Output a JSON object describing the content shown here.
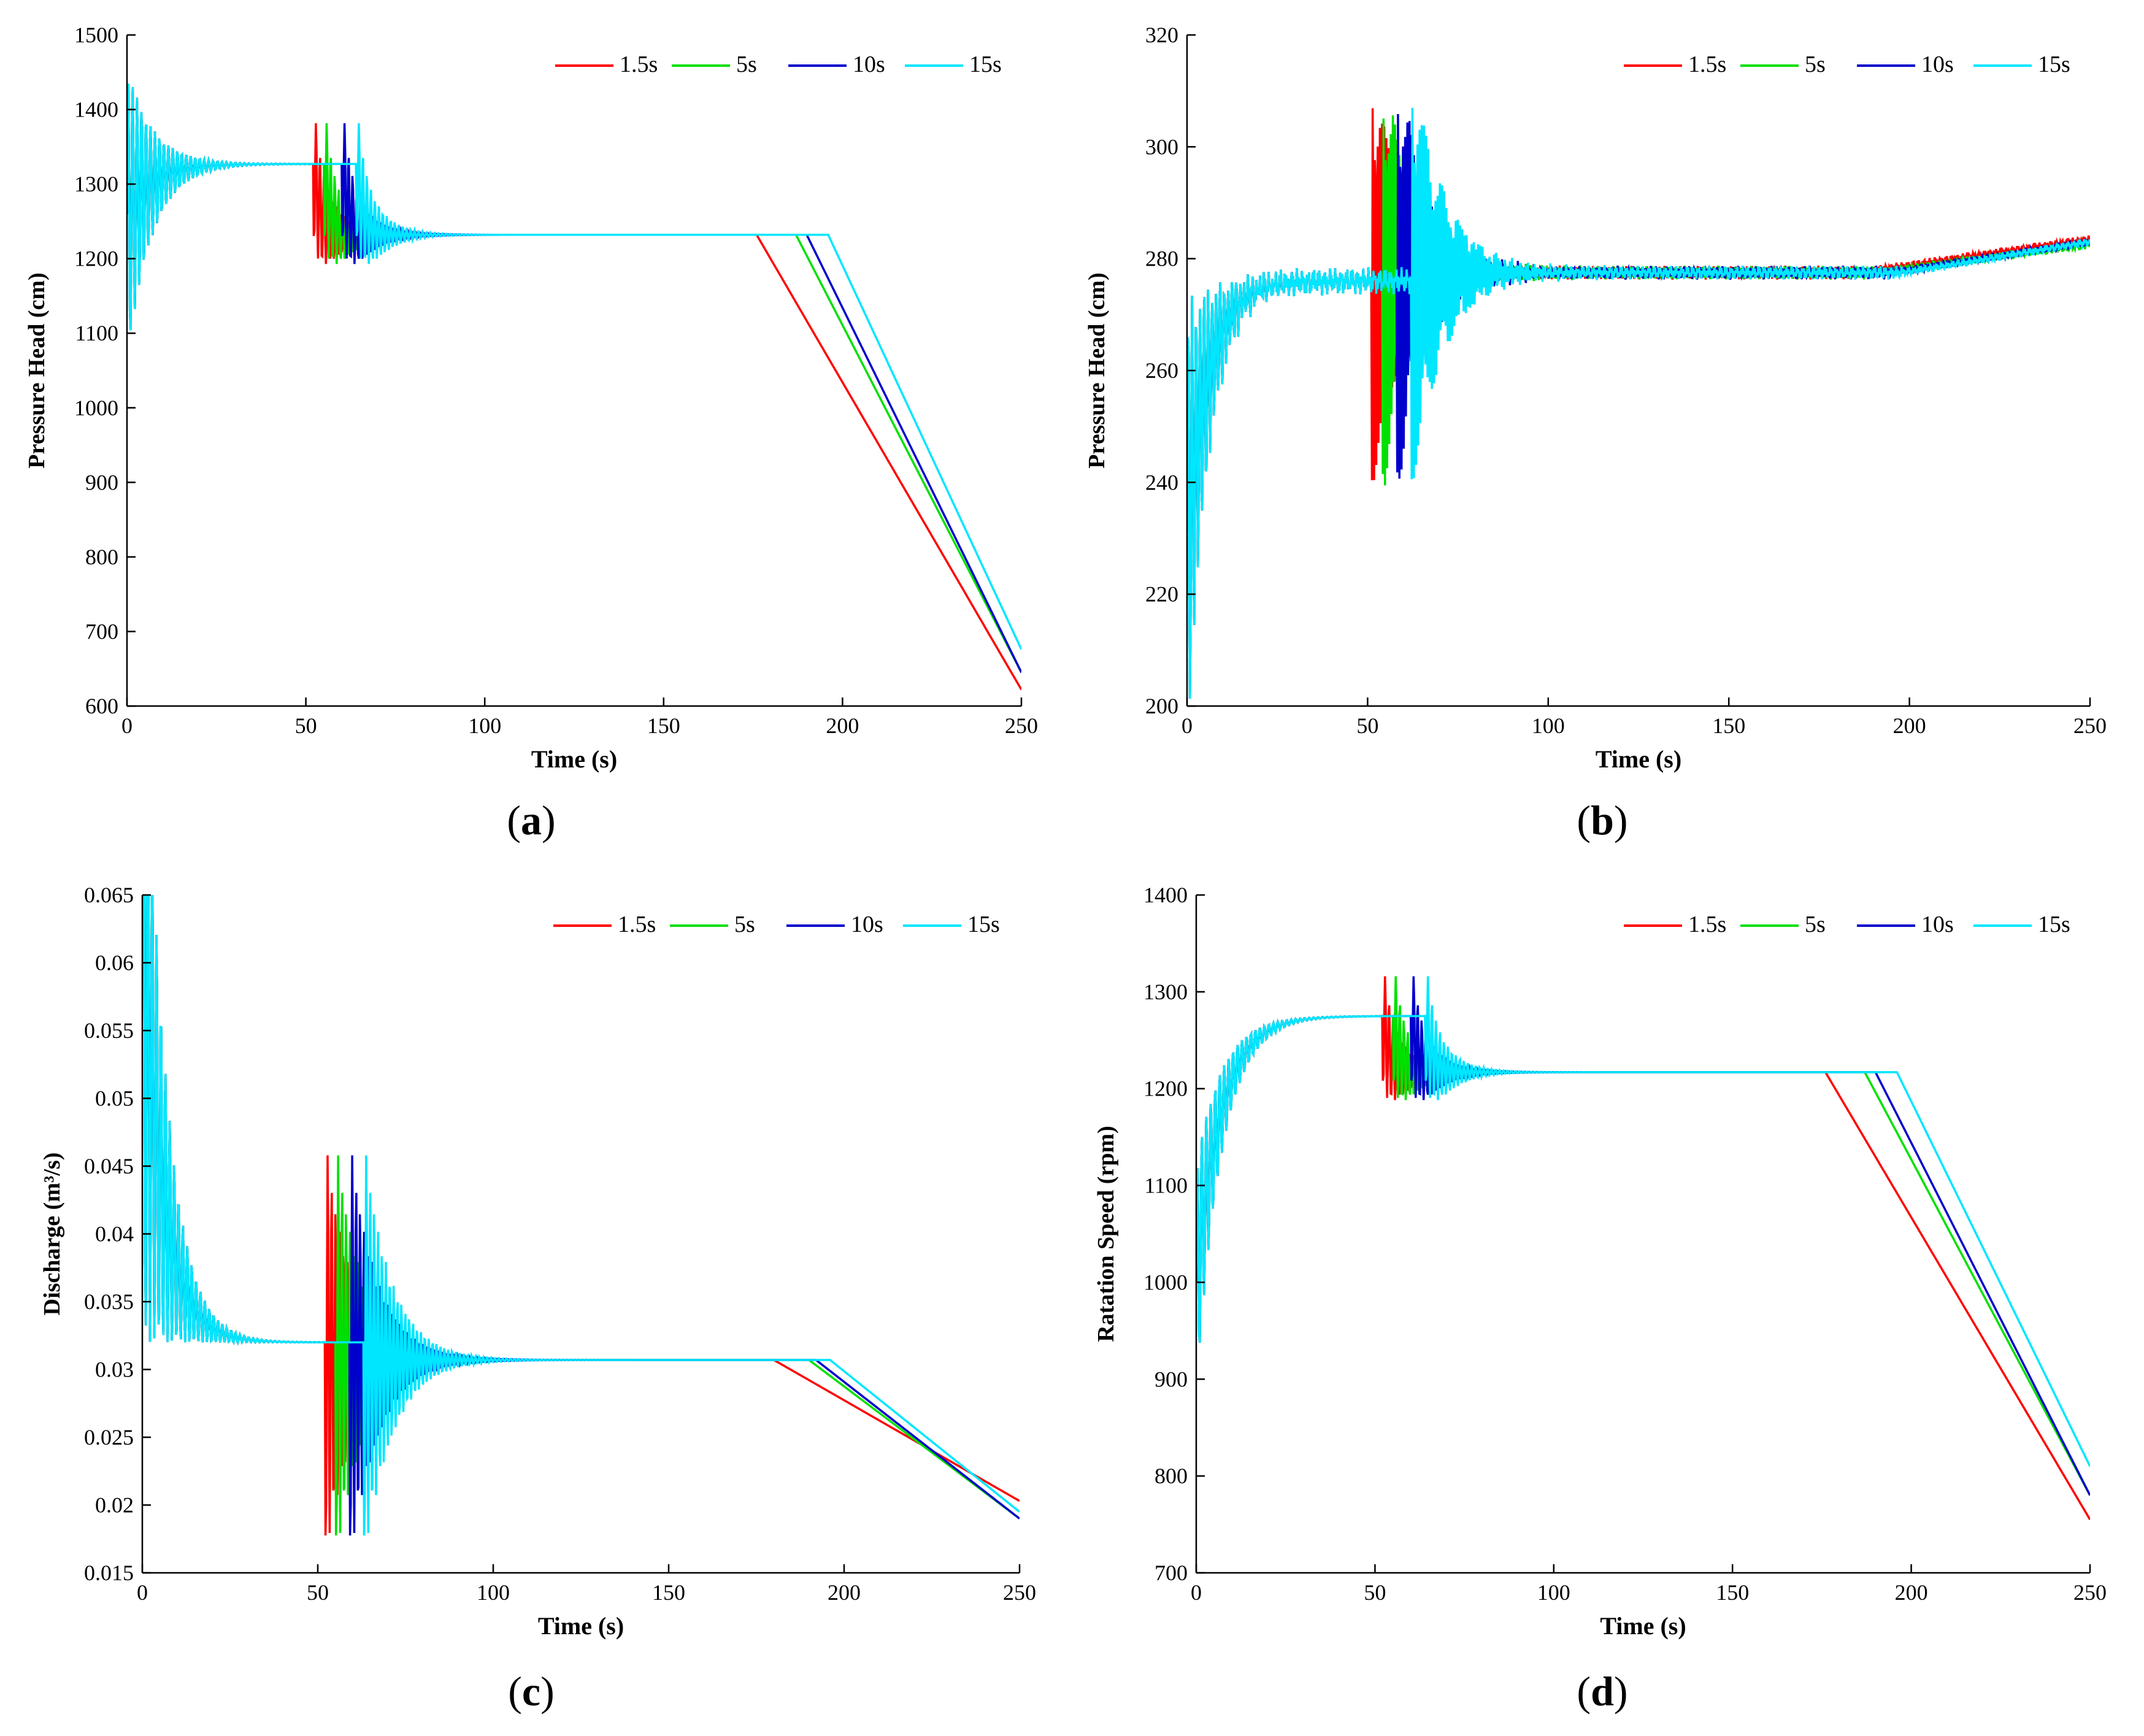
{
  "colors": {
    "series": [
      "#ff0000",
      "#00e000",
      "#0000cc",
      "#00e6ff"
    ],
    "axis": "#000000",
    "background": "#ffffff"
  },
  "chart_data": [
    {
      "panel_label": "(a)",
      "type": "line",
      "xlabel": "Time (s)",
      "ylabel": "Pressure Head (cm)",
      "xlim": [
        0,
        250
      ],
      "ylim": [
        600,
        1500
      ],
      "xticks": [
        0,
        50,
        100,
        150,
        200,
        250
      ],
      "yticks": [
        600,
        700,
        800,
        900,
        1000,
        1100,
        1200,
        1300,
        1400,
        1500
      ],
      "grid": false,
      "legend_position": "top-right",
      "profile": {
        "start": 1260,
        "init_amp": 200,
        "init_decay": 7,
        "init_freq": 0.8,
        "level1": 1327,
        "level2": 1232,
        "trans_drop": 95,
        "trans_amp": 100,
        "trans_decay": 6,
        "trans_freq": 0.9,
        "noise": 0,
        "end_values": [
          622,
          645,
          645,
          676
        ]
      },
      "series": [
        {
          "name": "1.5s",
          "t_start": 52,
          "t_ramp": 176
        },
        {
          "name": "5s",
          "t_start": 55,
          "t_ramp": 187
        },
        {
          "name": "10s",
          "t_start": 60,
          "t_ramp": 190
        },
        {
          "name": "15s",
          "t_start": 64,
          "t_ramp": 196
        }
      ]
    },
    {
      "panel_label": "(b)",
      "type": "line",
      "xlabel": "Time (s)",
      "ylabel": "Pressure Head (cm)",
      "xlim": [
        0,
        250
      ],
      "ylim": [
        200,
        320
      ],
      "xticks": [
        0,
        50,
        100,
        150,
        200,
        250
      ],
      "yticks": [
        200,
        220,
        240,
        260,
        280,
        300,
        320
      ],
      "grid": false,
      "legend_position": "top-right",
      "profile": {
        "start": 230,
        "init_amp": 40,
        "init_decay": 6,
        "init_freq": 0.9,
        "level1": 276,
        "level2": 277.5,
        "trans_drop": 0,
        "trans_amp": 40,
        "trans_decay": 9,
        "trans_freq": 1.6,
        "noise": 2.5,
        "end_values": [
          283.5,
          282.5,
          283,
          283
        ]
      },
      "series": [
        {
          "name": "1.5s",
          "t_start": 51,
          "t_ramp": 185
        },
        {
          "name": "5s",
          "t_start": 54,
          "t_ramp": 190
        },
        {
          "name": "10s",
          "t_start": 58,
          "t_ramp": 195
        },
        {
          "name": "15s",
          "t_start": 62,
          "t_ramp": 198
        }
      ]
    },
    {
      "panel_label": "(c)",
      "type": "line",
      "xlabel": "Time (s)",
      "ylabel": "Discharge (m³/s)",
      "xlim": [
        0,
        250
      ],
      "ylim": [
        0.015,
        0.065
      ],
      "xticks": [
        0,
        50,
        100,
        150,
        200,
        250
      ],
      "yticks": [
        0.015,
        0.02,
        0.025,
        0.03,
        0.035,
        0.04,
        0.045,
        0.05,
        0.055,
        0.06,
        0.065
      ],
      "grid": false,
      "legend_position": "top-right",
      "profile": {
        "start": 0.062,
        "init_amp": 0.03,
        "init_decay": 6,
        "init_freq": 0.8,
        "level1": 0.032,
        "level2": 0.0307,
        "trans_drop": 0.0013,
        "trans_amp": 0.016,
        "trans_decay": 8,
        "trans_freq": 0.9,
        "noise": 0,
        "end_values": [
          0.0203,
          0.019,
          0.019,
          0.0195
        ]
      },
      "series": [
        {
          "name": "1.5s",
          "t_start": 52,
          "t_ramp": 180
        },
        {
          "name": "5s",
          "t_start": 55,
          "t_ramp": 190
        },
        {
          "name": "10s",
          "t_start": 59,
          "t_ramp": 192
        },
        {
          "name": "15s",
          "t_start": 63,
          "t_ramp": 196
        }
      ]
    },
    {
      "panel_label": "(d)",
      "type": "line",
      "xlabel": "Time (s)",
      "ylabel": "Ratation Speed (rpm)",
      "xlim": [
        0,
        250
      ],
      "ylim": [
        700,
        1400
      ],
      "xticks": [
        0,
        50,
        100,
        150,
        200,
        250
      ],
      "yticks": [
        700,
        800,
        900,
        1000,
        1100,
        1200,
        1300,
        1400
      ],
      "grid": false,
      "legend_position": "top-right",
      "profile": {
        "start": 1000,
        "init_amp": 120,
        "init_decay": 7,
        "init_freq": 0.8,
        "level1": 1275,
        "level2": 1217,
        "trans_drop": 58,
        "trans_amp": 70,
        "trans_decay": 6,
        "trans_freq": 0.9,
        "noise": 0,
        "end_values": [
          755,
          780,
          780,
          810
        ]
      },
      "series": [
        {
          "name": "1.5s",
          "t_start": 52,
          "t_ramp": 176
        },
        {
          "name": "5s",
          "t_start": 55,
          "t_ramp": 187
        },
        {
          "name": "10s",
          "t_start": 60,
          "t_ramp": 190
        },
        {
          "name": "15s",
          "t_start": 64,
          "t_ramp": 196
        }
      ]
    }
  ]
}
